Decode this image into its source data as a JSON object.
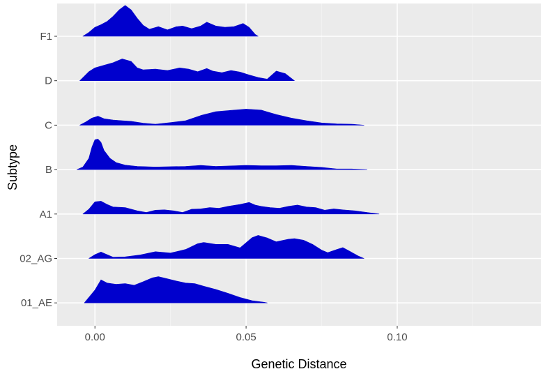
{
  "chart_data": {
    "type": "ridgeline",
    "title": "",
    "xlabel": "Genetic Distance",
    "ylabel": "Subtype",
    "xlim": [
      -0.0125,
      0.1475
    ],
    "x_ticks": [
      0.0,
      0.05,
      0.1
    ],
    "x_tick_labels": [
      "0.00",
      "0.05",
      "0.10"
    ],
    "grid": true,
    "fill_color": "#0000cd",
    "panel_background": "#ebebeb",
    "categories": [
      "01_AE",
      "02_AG",
      "A1",
      "B",
      "C",
      "D",
      "F1"
    ],
    "series": [
      {
        "category": "01_AE",
        "x": [
          -0.0035,
          0.0,
          0.002,
          0.004,
          0.007,
          0.01,
          0.013,
          0.016,
          0.019,
          0.021,
          0.024,
          0.027,
          0.03,
          0.033,
          0.036,
          0.04,
          0.044,
          0.048,
          0.052,
          0.056,
          0.057
        ],
        "y": [
          0.0,
          0.4,
          0.72,
          0.62,
          0.58,
          0.6,
          0.55,
          0.66,
          0.78,
          0.82,
          0.75,
          0.68,
          0.62,
          0.6,
          0.52,
          0.42,
          0.3,
          0.17,
          0.07,
          0.02,
          0.0
        ]
      },
      {
        "category": "02_AG",
        "x": [
          -0.002,
          0.0,
          0.002,
          0.004,
          0.006,
          0.01,
          0.015,
          0.02,
          0.025,
          0.03,
          0.034,
          0.036,
          0.04,
          0.044,
          0.048,
          0.052,
          0.054,
          0.057,
          0.06,
          0.064,
          0.066,
          0.069,
          0.072,
          0.075,
          0.077,
          0.08,
          0.082,
          0.084,
          0.087,
          0.089
        ],
        "y": [
          0.0,
          0.12,
          0.2,
          0.12,
          0.04,
          0.05,
          0.11,
          0.21,
          0.17,
          0.28,
          0.46,
          0.5,
          0.44,
          0.44,
          0.33,
          0.65,
          0.72,
          0.64,
          0.52,
          0.6,
          0.62,
          0.57,
          0.44,
          0.26,
          0.18,
          0.28,
          0.34,
          0.24,
          0.08,
          0.0
        ]
      },
      {
        "category": "A1",
        "x": [
          -0.004,
          -0.002,
          0.0,
          0.002,
          0.004,
          0.006,
          0.01,
          0.014,
          0.017,
          0.02,
          0.023,
          0.026,
          0.029,
          0.032,
          0.035,
          0.038,
          0.041,
          0.044,
          0.048,
          0.051,
          0.053,
          0.055,
          0.058,
          0.061,
          0.064,
          0.067,
          0.07,
          0.073,
          0.076,
          0.079,
          0.082,
          0.086,
          0.09,
          0.094
        ],
        "y": [
          0.0,
          0.15,
          0.38,
          0.4,
          0.3,
          0.22,
          0.2,
          0.1,
          0.05,
          0.12,
          0.13,
          0.1,
          0.05,
          0.15,
          0.16,
          0.2,
          0.18,
          0.24,
          0.3,
          0.36,
          0.28,
          0.24,
          0.2,
          0.18,
          0.24,
          0.28,
          0.22,
          0.2,
          0.12,
          0.16,
          0.13,
          0.1,
          0.05,
          0.0
        ]
      },
      {
        "category": "B",
        "x": [
          -0.006,
          -0.004,
          -0.002,
          -0.001,
          0.0,
          0.001,
          0.002,
          0.003,
          0.005,
          0.007,
          0.01,
          0.014,
          0.02,
          0.03,
          0.035,
          0.04,
          0.05,
          0.055,
          0.06,
          0.065,
          0.07,
          0.075,
          0.08,
          0.085,
          0.09
        ],
        "y": [
          0.0,
          0.08,
          0.35,
          0.7,
          0.93,
          0.95,
          0.85,
          0.6,
          0.35,
          0.22,
          0.14,
          0.1,
          0.08,
          0.1,
          0.13,
          0.1,
          0.13,
          0.12,
          0.12,
          0.13,
          0.1,
          0.07,
          0.02,
          0.02,
          0.0
        ]
      },
      {
        "category": "C",
        "x": [
          -0.005,
          -0.003,
          -0.001,
          0.001,
          0.003,
          0.006,
          0.009,
          0.012,
          0.016,
          0.02,
          0.025,
          0.03,
          0.035,
          0.04,
          0.045,
          0.05,
          0.055,
          0.06,
          0.065,
          0.07,
          0.075,
          0.08,
          0.085,
          0.089
        ],
        "y": [
          0.0,
          0.1,
          0.22,
          0.28,
          0.2,
          0.16,
          0.14,
          0.12,
          0.06,
          0.03,
          0.08,
          0.14,
          0.3,
          0.42,
          0.46,
          0.5,
          0.47,
          0.33,
          0.22,
          0.14,
          0.07,
          0.04,
          0.03,
          0.0
        ]
      },
      {
        "category": "D",
        "x": [
          -0.005,
          -0.002,
          0.0,
          0.003,
          0.006,
          0.009,
          0.012,
          0.014,
          0.016,
          0.02,
          0.024,
          0.028,
          0.031,
          0.034,
          0.037,
          0.039,
          0.042,
          0.045,
          0.048,
          0.051,
          0.054,
          0.057,
          0.06,
          0.063,
          0.066
        ],
        "y": [
          0.0,
          0.28,
          0.4,
          0.48,
          0.56,
          0.68,
          0.6,
          0.4,
          0.34,
          0.36,
          0.32,
          0.4,
          0.36,
          0.28,
          0.38,
          0.3,
          0.25,
          0.32,
          0.27,
          0.18,
          0.1,
          0.05,
          0.3,
          0.22,
          0.0
        ]
      },
      {
        "category": "F1",
        "x": [
          -0.004,
          -0.002,
          0.0,
          0.002,
          0.004,
          0.006,
          0.008,
          0.01,
          0.012,
          0.014,
          0.016,
          0.018,
          0.021,
          0.024,
          0.027,
          0.029,
          0.032,
          0.035,
          0.037,
          0.04,
          0.043,
          0.046,
          0.049,
          0.051,
          0.053,
          0.054
        ],
        "y": [
          0.0,
          0.12,
          0.28,
          0.36,
          0.46,
          0.62,
          0.82,
          0.96,
          0.82,
          0.56,
          0.34,
          0.22,
          0.3,
          0.2,
          0.3,
          0.32,
          0.24,
          0.32,
          0.44,
          0.32,
          0.28,
          0.3,
          0.4,
          0.28,
          0.06,
          0.0
        ]
      }
    ]
  }
}
